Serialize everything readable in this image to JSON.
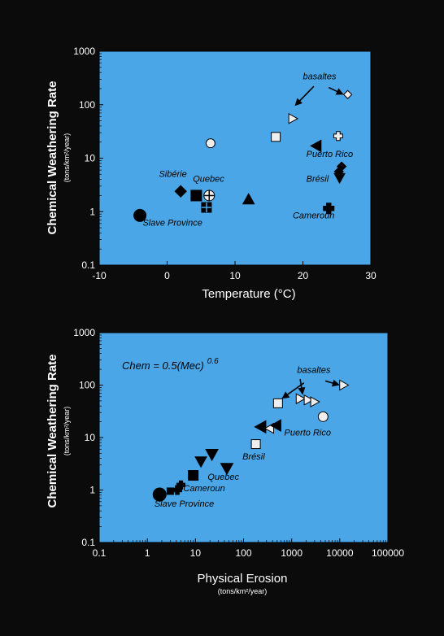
{
  "colors": {
    "page_bg": "#0b0b0c",
    "plot_bg": "#4aa6e6",
    "ink": "#000000",
    "light_fill": "#eeeeee",
    "axis_text": "#ffffff"
  },
  "chart_data": [
    {
      "type": "scatter",
      "title": "",
      "xlabel": "Temperature (°C)",
      "ylabel": "Chemical Weathering Rate",
      "ylabel_units": "(tons/km²/year)",
      "xscale": "linear",
      "yscale": "log",
      "xlim": [
        -10,
        30
      ],
      "ylim": [
        0.1,
        1000
      ],
      "xticks": [
        -10,
        0,
        10,
        20,
        30
      ],
      "yticks": [
        0.1,
        1,
        10,
        100,
        1000
      ],
      "grid": false,
      "points": [
        {
          "x": -4,
          "y": 0.85,
          "marker": "circle",
          "fill": "dark",
          "size": 15
        },
        {
          "x": 2,
          "y": 2.4,
          "marker": "diamond",
          "fill": "dark",
          "size": 14
        },
        {
          "x": 4.3,
          "y": 2.0,
          "marker": "square",
          "fill": "dark",
          "size": 13
        },
        {
          "x": 5.8,
          "y": 1.2,
          "marker": "cross-square",
          "fill": "dark",
          "size": 12
        },
        {
          "x": 6.2,
          "y": 2.0,
          "marker": "cross-circle",
          "fill": "light",
          "size": 13
        },
        {
          "x": 6.4,
          "y": 19,
          "marker": "circle",
          "fill": "light",
          "size": 11
        },
        {
          "x": 12,
          "y": 1.7,
          "marker": "triangle-up",
          "fill": "dark",
          "size": 14
        },
        {
          "x": 16,
          "y": 25,
          "marker": "square",
          "fill": "light",
          "size": 11
        },
        {
          "x": 18.5,
          "y": 55,
          "marker": "triangle-right",
          "fill": "light",
          "size": 12
        },
        {
          "x": 22,
          "y": 17,
          "marker": "triangle-left",
          "fill": "dark",
          "size": 14
        },
        {
          "x": 23.8,
          "y": 1.15,
          "marker": "plus",
          "fill": "dark",
          "size": 13
        },
        {
          "x": 25.2,
          "y": 26,
          "marker": "plus",
          "fill": "light",
          "size": 11
        },
        {
          "x": 25.4,
          "y": 4.3,
          "marker": "triangle-down",
          "fill": "dark",
          "size": 13
        },
        {
          "x": 25.3,
          "y": 5.6,
          "marker": "diamond",
          "fill": "dark",
          "size": 11
        },
        {
          "x": 25.7,
          "y": 7.0,
          "marker": "diamond",
          "fill": "dark",
          "size": 11
        },
        {
          "x": 26.6,
          "y": 155,
          "marker": "diamond",
          "fill": "light",
          "size": 10
        }
      ],
      "labels": [
        {
          "text": "Sibérie",
          "x": -1.2,
          "y": 4.5
        },
        {
          "text": "Quebec",
          "x": 3.8,
          "y": 3.6
        },
        {
          "text": "Slave Province",
          "x": -3.6,
          "y": 0.55
        },
        {
          "text": "basaltes",
          "x": 20,
          "y": 300
        },
        {
          "text": "Puerto Rico",
          "x": 20.5,
          "y": 10.5
        },
        {
          "text": "Brésil",
          "x": 20.5,
          "y": 3.6
        },
        {
          "text": "Cameroun",
          "x": 18.5,
          "y": 0.75
        }
      ],
      "arrows": [
        {
          "from": [
            21.6,
            220
          ],
          "to": [
            18.8,
            95
          ]
        },
        {
          "from": [
            23.8,
            210
          ],
          "to": [
            26.0,
            155
          ]
        }
      ]
    },
    {
      "type": "scatter",
      "title": "",
      "equation": {
        "base": "Chem = 0.5(Mec)",
        "exponent": "0.6"
      },
      "xlabel": "Physical Erosion",
      "xlabel_units": "(tons/km²/year)",
      "ylabel": "Chemical Weathering Rate",
      "ylabel_units": "(tons/km²/year)",
      "xscale": "log",
      "yscale": "log",
      "xlim": [
        0.1,
        100000
      ],
      "ylim": [
        0.1,
        1000
      ],
      "xticks": [
        0.1,
        1,
        10,
        100,
        1000,
        10000,
        100000
      ],
      "yticks": [
        0.1,
        1,
        10,
        100,
        1000
      ],
      "grid": false,
      "points": [
        {
          "x": 1.8,
          "y": 0.82,
          "marker": "circle",
          "fill": "dark",
          "size": 16
        },
        {
          "x": 3.0,
          "y": 0.95,
          "marker": "square",
          "fill": "dark",
          "size": 8
        },
        {
          "x": 4.2,
          "y": 1.0,
          "marker": "plus",
          "fill": "dark",
          "size": 11
        },
        {
          "x": 5.0,
          "y": 1.25,
          "marker": "plus",
          "fill": "dark",
          "size": 10
        },
        {
          "x": 9,
          "y": 1.9,
          "marker": "square",
          "fill": "dark",
          "size": 12
        },
        {
          "x": 13,
          "y": 3.5,
          "marker": "triangle-down",
          "fill": "dark",
          "size": 14
        },
        {
          "x": 22,
          "y": 4.8,
          "marker": "triangle-down",
          "fill": "dark",
          "size": 15
        },
        {
          "x": 45,
          "y": 2.6,
          "marker": "triangle-down",
          "fill": "dark",
          "size": 15
        },
        {
          "x": 180,
          "y": 7.5,
          "marker": "square",
          "fill": "light",
          "size": 11
        },
        {
          "x": 230,
          "y": 16,
          "marker": "triangle-left",
          "fill": "dark",
          "size": 15
        },
        {
          "x": 350,
          "y": 15,
          "marker": "triangle-left",
          "fill": "light",
          "size": 12
        },
        {
          "x": 480,
          "y": 17,
          "marker": "triangle-left",
          "fill": "dark",
          "size": 14
        },
        {
          "x": 520,
          "y": 45,
          "marker": "square",
          "fill": "light",
          "size": 11
        },
        {
          "x": 1500,
          "y": 55,
          "marker": "triangle-right",
          "fill": "light",
          "size": 12
        },
        {
          "x": 2200,
          "y": 52,
          "marker": "triangle-right",
          "fill": "light",
          "size": 12
        },
        {
          "x": 3000,
          "y": 48,
          "marker": "triangle-right",
          "fill": "light",
          "size": 12
        },
        {
          "x": 4500,
          "y": 25,
          "marker": "circle",
          "fill": "light",
          "size": 12
        },
        {
          "x": 12000,
          "y": 100,
          "marker": "triangle-right",
          "fill": "light",
          "size": 12
        }
      ],
      "labels": [
        {
          "text": "basaltes",
          "x": 1300,
          "y": 170
        },
        {
          "text": "Puerto Rico",
          "x": 700,
          "y": 11
        },
        {
          "text": "Brésil",
          "x": 95,
          "y": 3.8
        },
        {
          "text": "Quebec",
          "x": 18,
          "y": 1.55
        },
        {
          "text": "Cameroun",
          "x": 5.6,
          "y": 0.95
        },
        {
          "text": "Slave Province",
          "x": 1.4,
          "y": 0.48
        }
      ],
      "arrows": [
        {
          "from": [
            1800,
            110
          ],
          "to": [
            620,
            55
          ]
        },
        {
          "from": [
            5000,
            120
          ],
          "to": [
            10000,
            100
          ]
        },
        {
          "from": [
            1500,
            130
          ],
          "to": [
            1700,
            65
          ]
        }
      ]
    }
  ]
}
